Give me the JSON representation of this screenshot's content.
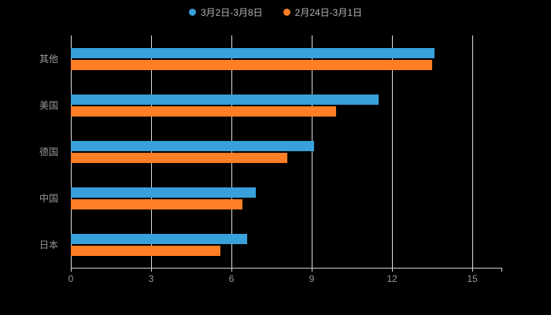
{
  "legend": {
    "items": [
      {
        "label": "3月2日-3月8日",
        "color": "#38a0da"
      },
      {
        "label": "2月24日-3月1日",
        "color": "#ff7e26"
      }
    ]
  },
  "chart_data": {
    "type": "bar",
    "orientation": "horizontal",
    "title": "",
    "categories": [
      "其他",
      "美国",
      "德国",
      "中国",
      "日本"
    ],
    "series": [
      {
        "name": "3月2日-3月8日",
        "color": "#38a0da",
        "values": [
          13.6,
          11.5,
          9.1,
          6.9,
          6.6
        ]
      },
      {
        "name": "2月24日-3月1日",
        "color": "#ff7e26",
        "values": [
          13.5,
          9.9,
          8.1,
          6.4,
          5.6
        ]
      }
    ],
    "xlabel": "",
    "ylabel": "",
    "xlim": [
      0,
      15
    ],
    "xticks": [
      0,
      3,
      6,
      9,
      12,
      15
    ],
    "grid": true,
    "legend_position": "top",
    "background": "#000000",
    "text_color": "#999999",
    "grid_color": "#dcdcdc"
  }
}
